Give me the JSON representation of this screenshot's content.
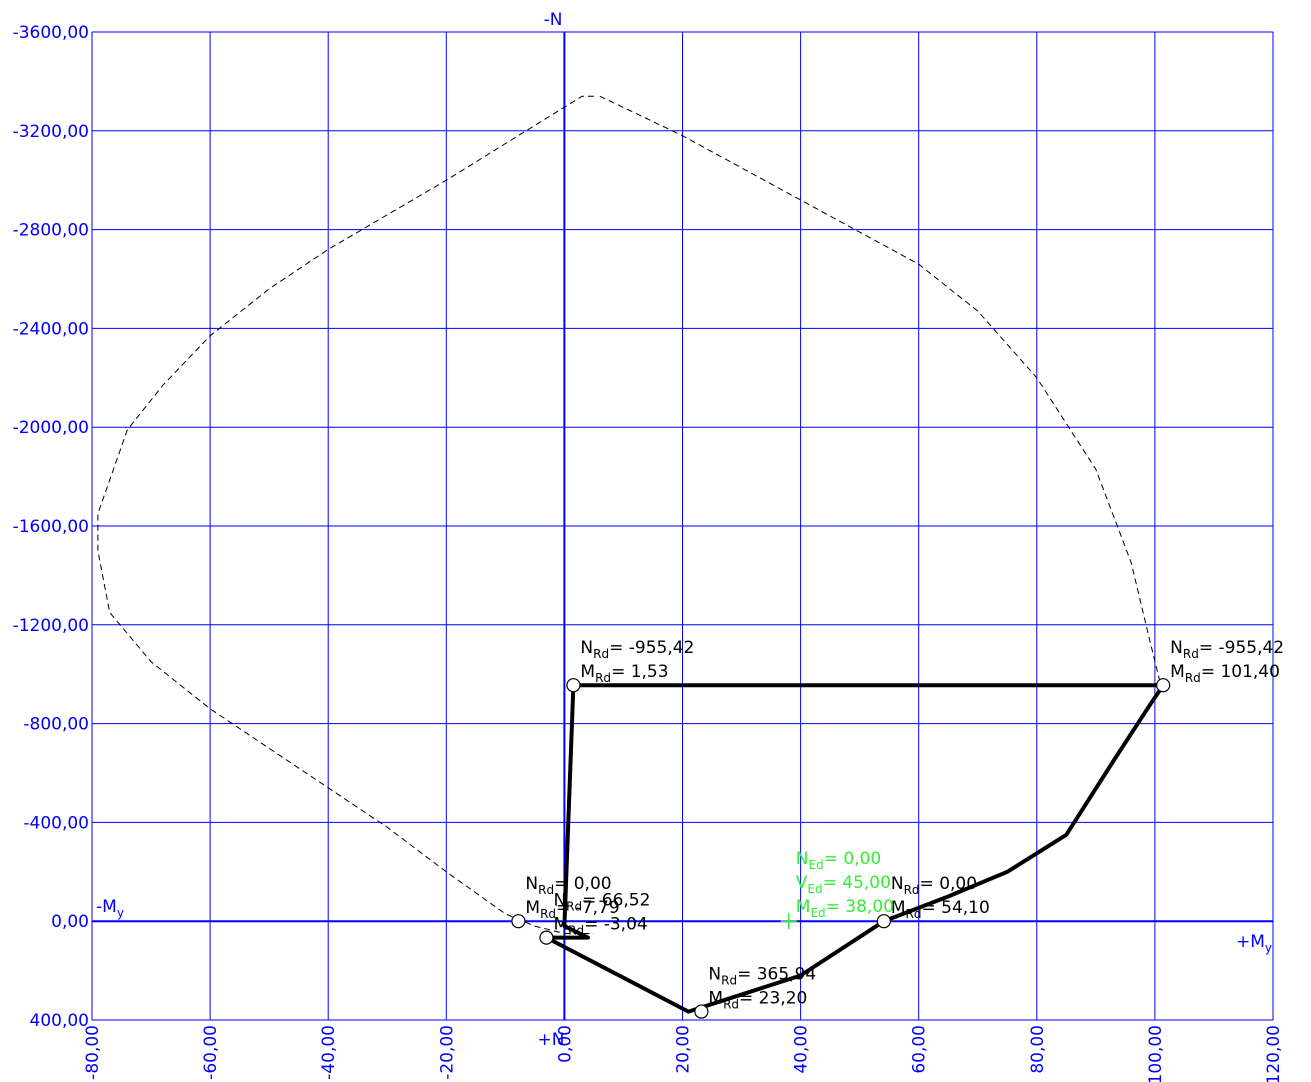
{
  "chart_data": {
    "type": "line",
    "title": "",
    "axis_labels": {
      "neg_n": "-N",
      "pos_n": "+N",
      "neg_m": "-M",
      "pos_m": "+M",
      "m_sub": "y"
    },
    "x_ticks": [
      "-80,00",
      "-60,00",
      "-40,00",
      "-20,00",
      "0,00",
      "20,00",
      "40,00",
      "60,00",
      "80,00",
      "100,00",
      "120,00"
    ],
    "y_ticks": [
      "-3600,00",
      "-3200,00",
      "-2800,00",
      "-2400,00",
      "-2000,00",
      "-1600,00",
      "-1200,00",
      "-800,00",
      "-400,00",
      "0,00",
      "400,00"
    ],
    "xlim": [
      -80,
      120
    ],
    "ylim": [
      -3600,
      400
    ],
    "grid": true,
    "colors": {
      "axis": "#0000ff",
      "grid": "#0000ff",
      "curve": "#000000",
      "design": "#33ee33"
    },
    "series": [
      {
        "style": "dashed",
        "points": [
          [
            5,
            -3340
          ],
          [
            3,
            -3340
          ],
          [
            -20,
            -3000
          ],
          [
            -40,
            -2720
          ],
          [
            -50,
            -2560
          ],
          [
            -60,
            -2370
          ],
          [
            -68,
            -2170
          ],
          [
            -74,
            -1990
          ],
          [
            -79,
            -1650
          ],
          [
            -79,
            -1500
          ],
          [
            -77,
            -1250
          ],
          [
            -70,
            -1050
          ],
          [
            -60,
            -860
          ],
          [
            -50,
            -700
          ],
          [
            -40,
            -540
          ],
          [
            -30,
            -380
          ],
          [
            -20,
            -200
          ],
          [
            -10,
            -30
          ],
          [
            -5,
            20
          ],
          [
            0,
            50
          ],
          [
            5,
            50
          ]
        ]
      },
      {
        "style": "dashed",
        "points": [
          [
            6,
            -3340
          ],
          [
            20,
            -3180
          ],
          [
            40,
            -2920
          ],
          [
            60,
            -2660
          ],
          [
            70,
            -2470
          ],
          [
            80,
            -2200
          ],
          [
            90,
            -1830
          ],
          [
            96,
            -1450
          ],
          [
            99,
            -1150
          ],
          [
            101,
            -955
          ]
        ]
      },
      {
        "style": "solid",
        "points": [
          [
            -3.04,
            66.52
          ],
          [
            21,
            366
          ],
          [
            40,
            220
          ],
          [
            54.1,
            0
          ],
          [
            65,
            -100
          ],
          [
            75,
            -200
          ],
          [
            85,
            -350
          ],
          [
            93,
            -650
          ],
          [
            99,
            -870
          ],
          [
            101.4,
            -955.42
          ],
          [
            1.53,
            -955.42
          ],
          [
            0,
            20
          ],
          [
            4,
            66.52
          ],
          [
            -3.04,
            66.52
          ]
        ]
      }
    ],
    "markers": [
      {
        "label_n": "N",
        "sub_n": "Rd",
        "value_n": "= -955,42",
        "label_m": "M",
        "sub_m": "Rd",
        "value_m": "= 1,53",
        "x": 1.53,
        "y": -955.42
      },
      {
        "label_n": "N",
        "sub_n": "Rd",
        "value_n": "= -955,42",
        "label_m": "M",
        "sub_m": "Rd",
        "value_m": "= 101,40",
        "x": 101.4,
        "y": -955.42
      },
      {
        "label_n": "N",
        "sub_n": "Rd",
        "value_n": "= 0,00",
        "label_m": "M",
        "sub_m": "Rd",
        "value_m": "= -7,79",
        "x": -7.79,
        "y": 0
      },
      {
        "label_n": "N",
        "sub_n": "Rd",
        "value_n": "= 66,52",
        "label_m": "M",
        "sub_m": "Rd",
        "value_m": "= -3,04",
        "x": -3.04,
        "y": 66.52
      },
      {
        "label_n": "N",
        "sub_n": "Rd",
        "value_n": "= 365,94",
        "label_m": "M",
        "sub_m": "Rd",
        "value_m": "= 23,20",
        "x": 23.2,
        "y": 365.94
      },
      {
        "label_n": "N",
        "sub_n": "Rd",
        "value_n": "= 0,00",
        "label_m": "M",
        "sub_m": "Rd",
        "value_m": "= 54,10",
        "x": 54.1,
        "y": 0
      }
    ],
    "design_point": {
      "n": {
        "label": "N",
        "sub": "Ed",
        "value": "= 0,00"
      },
      "v": {
        "label": "V",
        "sub": "Ed",
        "value": "= 45,00"
      },
      "m": {
        "label": "M",
        "sub": "Ed",
        "value": "= 38,00"
      },
      "x": 38,
      "y": 0
    }
  }
}
